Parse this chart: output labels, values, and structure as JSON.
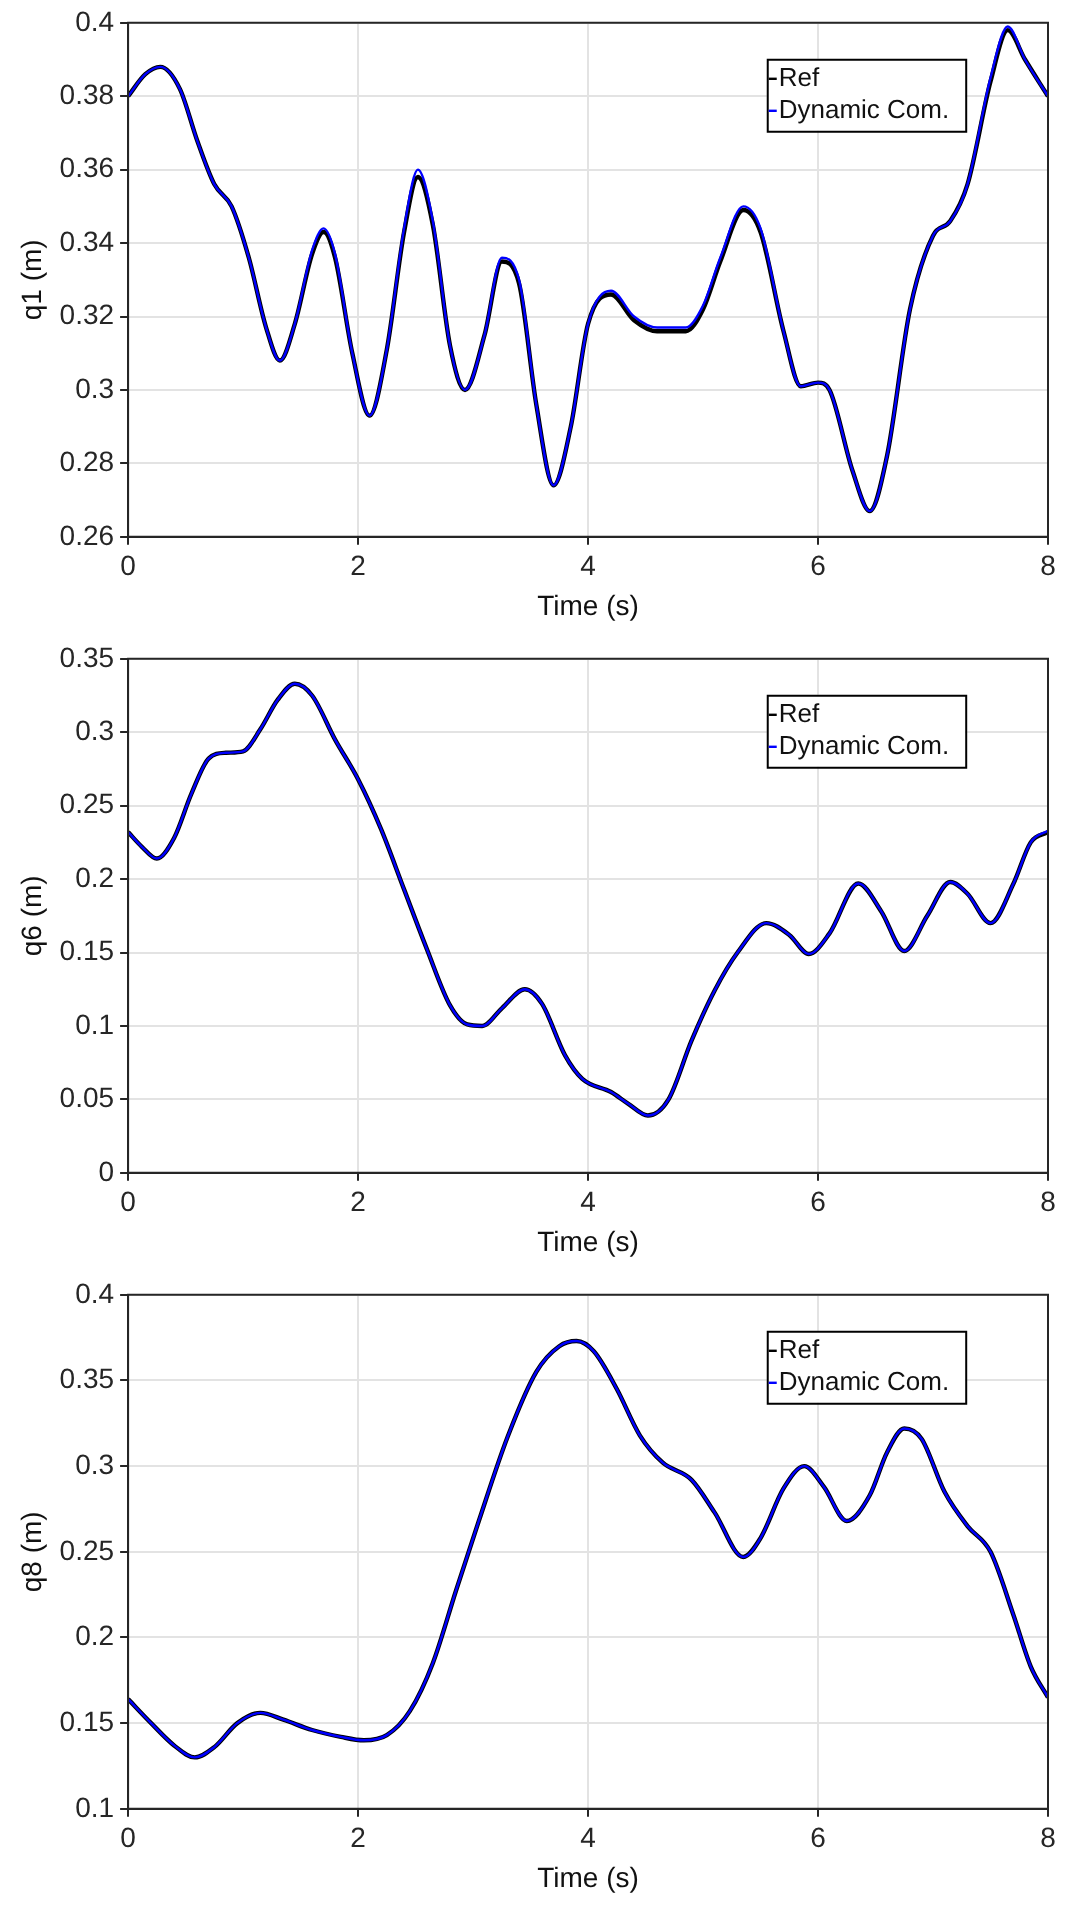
{
  "chart_data": [
    {
      "type": "line",
      "xlabel": "Time (s)",
      "ylabel": "q1 (m)",
      "xlim": [
        0,
        8
      ],
      "xticks": [
        0,
        2,
        4,
        6,
        8
      ],
      "ylim": [
        0.26,
        0.4
      ],
      "yticks": [
        0.26,
        0.28,
        0.3,
        0.32,
        0.34,
        0.36,
        0.38,
        0.4
      ],
      "grid": true,
      "legend": "top right",
      "marker": "none",
      "line_style": "solid",
      "x": [
        0,
        0.15,
        0.28,
        0.45,
        0.6,
        0.75,
        0.9,
        1.05,
        1.2,
        1.32,
        1.45,
        1.6,
        1.7,
        1.8,
        1.95,
        2.1,
        2.25,
        2.4,
        2.52,
        2.65,
        2.8,
        2.93,
        3.1,
        3.25,
        3.4,
        3.55,
        3.7,
        3.85,
        4.0,
        4.2,
        4.4,
        4.6,
        4.85,
        5.0,
        5.15,
        5.35,
        5.5,
        5.7,
        5.85,
        6.0,
        6.1,
        6.3,
        6.45,
        6.6,
        6.8,
        7.0,
        7.15,
        7.3,
        7.5,
        7.65,
        7.8,
        8.0
      ],
      "series": [
        {
          "name": "Ref",
          "color": "#000000",
          "values": [
            0.38,
            0.386,
            0.388,
            0.382,
            0.368,
            0.356,
            0.35,
            0.336,
            0.317,
            0.308,
            0.318,
            0.337,
            0.343,
            0.336,
            0.31,
            0.293,
            0.311,
            0.343,
            0.358,
            0.345,
            0.312,
            0.3,
            0.315,
            0.335,
            0.329,
            0.296,
            0.274,
            0.29,
            0.318,
            0.326,
            0.319,
            0.316,
            0.316,
            0.322,
            0.335,
            0.349,
            0.343,
            0.316,
            0.301,
            0.302,
            0.3,
            0.278,
            0.267,
            0.282,
            0.322,
            0.342,
            0.346,
            0.356,
            0.384,
            0.398,
            0.39,
            0.38
          ]
        },
        {
          "name": "Dynamic Com.",
          "color": "#0000ff",
          "values": [
            0.38,
            0.386,
            0.388,
            0.382,
            0.368,
            0.356,
            0.35,
            0.336,
            0.317,
            0.308,
            0.318,
            0.338,
            0.344,
            0.337,
            0.31,
            0.293,
            0.311,
            0.344,
            0.36,
            0.346,
            0.312,
            0.3,
            0.315,
            0.336,
            0.33,
            0.296,
            0.274,
            0.29,
            0.318,
            0.327,
            0.32,
            0.317,
            0.317,
            0.323,
            0.336,
            0.35,
            0.344,
            0.316,
            0.301,
            0.302,
            0.3,
            0.278,
            0.267,
            0.282,
            0.322,
            0.342,
            0.346,
            0.356,
            0.385,
            0.399,
            0.39,
            0.38
          ]
        }
      ]
    },
    {
      "type": "line",
      "xlabel": "Time (s)",
      "ylabel": "q6 (m)",
      "xlim": [
        0,
        8
      ],
      "xticks": [
        0,
        2,
        4,
        6,
        8
      ],
      "ylim": [
        0,
        0.35
      ],
      "yticks": [
        0,
        0.05,
        0.1,
        0.15,
        0.2,
        0.25,
        0.3,
        0.35
      ],
      "grid": true,
      "legend": "top right",
      "marker": "none",
      "line_style": "solid",
      "x": [
        0,
        0.12,
        0.25,
        0.4,
        0.55,
        0.7,
        0.85,
        1.0,
        1.15,
        1.3,
        1.45,
        1.6,
        1.8,
        2.0,
        2.2,
        2.4,
        2.6,
        2.8,
        2.95,
        3.08,
        3.25,
        3.45,
        3.6,
        3.8,
        3.95,
        4.2,
        4.35,
        4.52,
        4.7,
        4.9,
        5.1,
        5.3,
        5.55,
        5.75,
        5.92,
        6.1,
        6.35,
        6.55,
        6.75,
        6.95,
        7.15,
        7.3,
        7.5,
        7.7,
        7.85,
        8.0
      ],
      "series": [
        {
          "name": "Ref",
          "color": "#000000",
          "values": [
            0.232,
            0.222,
            0.214,
            0.228,
            0.258,
            0.282,
            0.286,
            0.287,
            0.302,
            0.322,
            0.333,
            0.325,
            0.295,
            0.268,
            0.234,
            0.193,
            0.152,
            0.114,
            0.101,
            0.1,
            0.112,
            0.125,
            0.115,
            0.08,
            0.064,
            0.055,
            0.047,
            0.039,
            0.05,
            0.09,
            0.124,
            0.15,
            0.17,
            0.162,
            0.149,
            0.163,
            0.197,
            0.178,
            0.151,
            0.175,
            0.198,
            0.19,
            0.17,
            0.197,
            0.225,
            0.232
          ]
        },
        {
          "name": "Dynamic Com.",
          "color": "#0000ff",
          "values": [
            0.232,
            0.222,
            0.214,
            0.228,
            0.258,
            0.282,
            0.286,
            0.287,
            0.302,
            0.322,
            0.333,
            0.325,
            0.295,
            0.268,
            0.234,
            0.193,
            0.152,
            0.114,
            0.101,
            0.1,
            0.112,
            0.125,
            0.115,
            0.08,
            0.064,
            0.055,
            0.047,
            0.039,
            0.05,
            0.09,
            0.124,
            0.15,
            0.17,
            0.162,
            0.149,
            0.163,
            0.197,
            0.178,
            0.151,
            0.175,
            0.198,
            0.19,
            0.17,
            0.197,
            0.225,
            0.233
          ]
        }
      ]
    },
    {
      "type": "line",
      "xlabel": "Time (s)",
      "ylabel": "q8 (m)",
      "xlim": [
        0,
        8
      ],
      "xticks": [
        0,
        2,
        4,
        6,
        8
      ],
      "ylim": [
        0.1,
        0.4
      ],
      "yticks": [
        0.1,
        0.15,
        0.2,
        0.25,
        0.3,
        0.35,
        0.4
      ],
      "grid": true,
      "legend": "top right",
      "marker": "none",
      "line_style": "solid",
      "x": [
        0,
        0.2,
        0.4,
        0.58,
        0.75,
        0.95,
        1.15,
        1.35,
        1.6,
        1.85,
        2.05,
        2.25,
        2.45,
        2.65,
        2.85,
        3.05,
        3.3,
        3.55,
        3.75,
        3.9,
        4.05,
        4.25,
        4.45,
        4.65,
        4.9,
        5.1,
        5.35,
        5.5,
        5.7,
        5.88,
        6.05,
        6.25,
        6.45,
        6.6,
        6.75,
        6.9,
        7.1,
        7.3,
        7.5,
        7.7,
        7.85,
        8.0
      ],
      "series": [
        {
          "name": "Ref",
          "color": "#000000",
          "values": [
            0.164,
            0.15,
            0.137,
            0.13,
            0.136,
            0.15,
            0.156,
            0.152,
            0.146,
            0.142,
            0.14,
            0.143,
            0.157,
            0.185,
            0.227,
            0.268,
            0.317,
            0.355,
            0.37,
            0.373,
            0.367,
            0.345,
            0.318,
            0.302,
            0.292,
            0.273,
            0.247,
            0.258,
            0.287,
            0.3,
            0.288,
            0.268,
            0.283,
            0.308,
            0.322,
            0.316,
            0.285,
            0.265,
            0.25,
            0.213,
            0.183,
            0.165
          ]
        },
        {
          "name": "Dynamic Com.",
          "color": "#0000ff",
          "values": [
            0.164,
            0.15,
            0.137,
            0.13,
            0.136,
            0.15,
            0.156,
            0.152,
            0.146,
            0.142,
            0.14,
            0.143,
            0.157,
            0.185,
            0.227,
            0.268,
            0.317,
            0.355,
            0.37,
            0.373,
            0.367,
            0.345,
            0.318,
            0.302,
            0.292,
            0.273,
            0.247,
            0.258,
            0.287,
            0.3,
            0.288,
            0.268,
            0.283,
            0.308,
            0.322,
            0.316,
            0.285,
            0.265,
            0.25,
            0.213,
            0.183,
            0.165
          ]
        }
      ]
    }
  ]
}
